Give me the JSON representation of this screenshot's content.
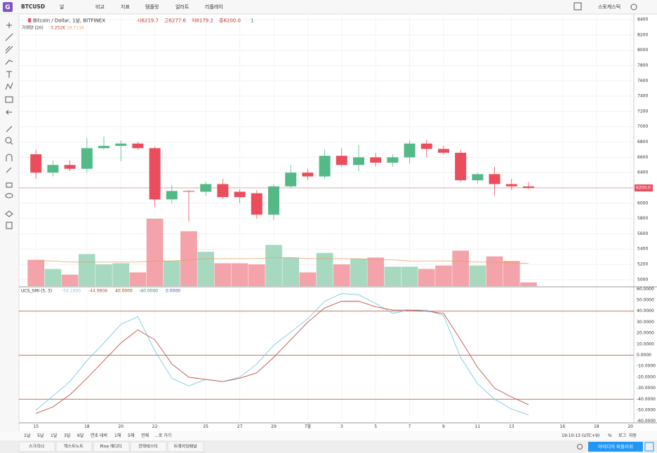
{
  "ui": {
    "symbol": "BTCUSD",
    "toolbar": [
      "날",
      "비교",
      "지표",
      "템플릿",
      "얼러트",
      "리플레이"
    ],
    "layout_name": "스토캐스틱",
    "ranges": [
      "1날",
      "5날",
      "1달",
      "3달",
      "6달",
      "연초 대비",
      "1해",
      "5해",
      "전체",
      "...로 가기"
    ],
    "clock": "19:10:13 (UTC+9)",
    "scale_options": [
      "%",
      "로그",
      "자동"
    ],
    "tabs": [
      "스크리너",
      "텍스트노트",
      "Pine 에디터",
      "전략테스터",
      "트레이딩패널"
    ],
    "publish": "아이디어 퍼블리쉬"
  },
  "chart_data": [
    {
      "type": "candlestick",
      "title": "Bitcoin / Dollar, 1날, BITFINEX",
      "ohlc_header": [
        "시6219.7",
        "고6277.6",
        "저6179.2",
        "종6200.0"
      ],
      "interval_badge": "1",
      "last_price_label": "6200.0",
      "last_price": 6200,
      "x": [
        0,
        1,
        2,
        3,
        4,
        5,
        6,
        7,
        8,
        9,
        10,
        11,
        12,
        13,
        14,
        15,
        16,
        17,
        18,
        19,
        20,
        21,
        22,
        23,
        24,
        25,
        26,
        27,
        28,
        29
      ],
      "xlim": [
        -1.0,
        35.2
      ],
      "xticks": [
        {
          "value": 0,
          "label": "15"
        },
        {
          "value": 3,
          "label": "18"
        },
        {
          "value": 5,
          "label": "20"
        },
        {
          "value": 7,
          "label": "22"
        },
        {
          "value": 10,
          "label": "25"
        },
        {
          "value": 12,
          "label": "27"
        },
        {
          "value": 14,
          "label": "29"
        },
        {
          "value": 16,
          "label": "7월"
        },
        {
          "value": 18,
          "label": "3"
        },
        {
          "value": 20,
          "label": "5"
        },
        {
          "value": 22,
          "label": "7"
        },
        {
          "value": 24,
          "label": "9"
        },
        {
          "value": 26,
          "label": "11"
        },
        {
          "value": 28,
          "label": "13"
        },
        {
          "value": 31,
          "label": "16"
        },
        {
          "value": 33,
          "label": "18"
        },
        {
          "value": 35,
          "label": "20"
        }
      ],
      "open": [
        6640,
        6400,
        6500,
        6450,
        6720,
        6750,
        6780,
        6720,
        6050,
        6160,
        6150,
        6250,
        6150,
        6130,
        5850,
        6220,
        6400,
        6350,
        6620,
        6500,
        6600,
        6530,
        6600,
        6780,
        6710,
        6660,
        6300,
        6380,
        6250,
        6219.7
      ],
      "high": [
        6700,
        6560,
        6560,
        6850,
        6870,
        6820,
        6800,
        6740,
        6240,
        6170,
        6280,
        6320,
        6180,
        6170,
        6250,
        6500,
        6450,
        6700,
        6720,
        6760,
        6660,
        6640,
        6820,
        6830,
        6750,
        6700,
        6400,
        6480,
        6320,
        6277.6
      ],
      "low": [
        6320,
        6350,
        6420,
        6400,
        6700,
        6550,
        6700,
        5950,
        6000,
        5760,
        6100,
        6050,
        6000,
        5800,
        5780,
        6200,
        6300,
        6320,
        6480,
        6420,
        6480,
        6480,
        6520,
        6600,
        6640,
        6280,
        6260,
        6100,
        6170,
        6179.2
      ],
      "close": [
        6400,
        6500,
        6450,
        6720,
        6750,
        6780,
        6720,
        6050,
        6160,
        6150,
        6250,
        6080,
        6080,
        5850,
        6220,
        6400,
        6350,
        6620,
        6500,
        6600,
        6530,
        6600,
        6780,
        6710,
        6660,
        6300,
        6380,
        6250,
        6220,
        6200
      ],
      "up_color": "#53b987",
      "down_color": "#eb4d5c",
      "ylim": [
        4916,
        8474
      ],
      "yticks": [
        5000,
        5200,
        5400,
        5600,
        5800,
        6000,
        6200,
        6400,
        6600,
        6800,
        7000,
        7200,
        7400,
        7600,
        7800,
        8000,
        8200,
        8400
      ],
      "grid": true,
      "volume_title": "거래량 (20)",
      "volume_header": [
        "3.252K",
        "19.711K"
      ],
      "volume": [
        23,
        15,
        10,
        28,
        19,
        20,
        12,
        59,
        22,
        48,
        30,
        20,
        20,
        19,
        36,
        25,
        12,
        29,
        19,
        24,
        25,
        17,
        17,
        15,
        18,
        31,
        18,
        26,
        22,
        3.252
      ],
      "volume_ma": [
        22,
        22,
        21,
        21,
        21,
        21,
        21,
        22,
        22,
        23,
        24,
        24,
        24,
        24,
        25,
        25,
        24,
        24,
        24,
        24,
        23,
        23,
        22,
        22,
        22,
        22,
        21,
        21,
        20.5,
        19.711
      ],
      "volume_ylim": [
        0,
        238
      ],
      "volume_up_color": "#a6d9c0",
      "volume_down_color": "#f3a3a9",
      "volume_ma_color": "#e8a061"
    },
    {
      "type": "line",
      "title": "UCS_SMI (5, 3)",
      "header_values": [
        "-54.1950",
        "-44.9808",
        "40.0000",
        "-40.0000",
        "0.0000"
      ],
      "header_colors": [
        "#7ec8e3",
        "#c0504d",
        "#8b4513",
        "#2e8b57",
        "#3f51b5"
      ],
      "x": [
        0,
        1,
        2,
        3,
        4,
        5,
        6,
        7,
        8,
        9,
        10,
        11,
        12,
        13,
        14,
        15,
        16,
        17,
        18,
        19,
        20,
        21,
        22,
        23,
        24,
        25,
        26,
        27,
        28,
        29
      ],
      "series": [
        {
          "name": "SMI",
          "color": "#7ec8e3",
          "values": [
            -50,
            -37,
            -24,
            -5,
            11,
            28,
            35,
            4,
            -21,
            -28,
            -22,
            -24,
            -20,
            -8,
            9,
            21,
            33,
            49,
            56,
            55,
            47,
            38,
            41,
            41,
            36,
            -2,
            -26,
            -40,
            -49,
            -54.195
          ]
        },
        {
          "name": "Signal",
          "color": "#c0504d",
          "values": [
            -53,
            -47,
            -36,
            -21,
            -5,
            11,
            23,
            14,
            -8,
            -20,
            -22,
            -24,
            -21,
            -16,
            -2,
            14,
            30,
            43,
            49,
            49,
            44,
            41,
            41,
            40,
            38,
            14,
            -11,
            -30,
            -38,
            -44.9808
          ]
        }
      ],
      "levels": [
        40,
        0,
        -40
      ],
      "level_color": "#a0522d",
      "ylim": [
        -61.5,
        61.5
      ],
      "yticks": [
        {
          "value": -60,
          "label": "-60.0000"
        },
        {
          "value": -50,
          "label": "-50.0000"
        },
        {
          "value": -40,
          "label": "-40.0000"
        },
        {
          "value": -30,
          "label": "-30.0000"
        },
        {
          "value": -20,
          "label": "-20.0000"
        },
        {
          "value": -10,
          "label": "-10.0000"
        },
        {
          "value": 0,
          "label": "0.0000"
        },
        {
          "value": 10,
          "label": "10.0000"
        },
        {
          "value": 20,
          "label": "20.0000"
        },
        {
          "value": 30,
          "label": "30.0000"
        },
        {
          "value": 40,
          "label": "40.0000"
        },
        {
          "value": 50,
          "label": "50.0000"
        },
        {
          "value": 60,
          "label": "60.0000"
        }
      ]
    }
  ]
}
